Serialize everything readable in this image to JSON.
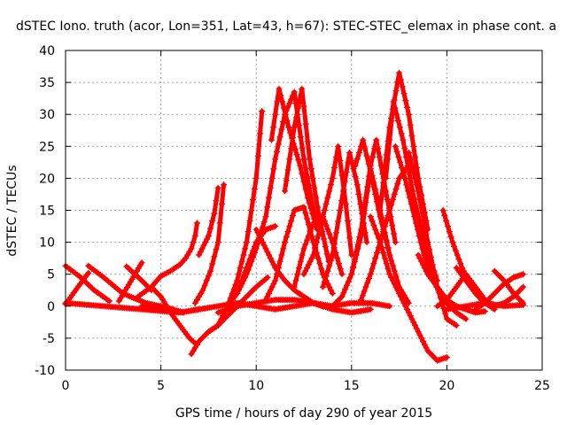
{
  "chart_data": {
    "type": "line",
    "title": "dSTEC Iono. truth (acor, Lon=351, Lat=43, h=67): STEC-STEC_elemax in phase cont. a",
    "xlabel": "GPS time / hours of day 290 of year 2015",
    "ylabel": "dSTEC  / TECUs",
    "xlim": [
      0,
      25
    ],
    "ylim": [
      -10,
      40
    ],
    "xticks": [
      0,
      5,
      10,
      15,
      20,
      25
    ],
    "yticks": [
      -10,
      -5,
      0,
      5,
      10,
      15,
      20,
      25,
      30,
      35,
      40
    ],
    "grid": true,
    "color": "#ff0000",
    "marker": "+",
    "series": [
      {
        "x": [
          0,
          0.8,
          1.5,
          2.3
        ],
        "y": [
          6.3,
          4.5,
          2.5,
          0.8
        ]
      },
      {
        "x": [
          0,
          0.6,
          1.2
        ],
        "y": [
          0.3,
          2.8,
          5.2
        ]
      },
      {
        "x": [
          1.2,
          2.0,
          3.0,
          4.2,
          5.3,
          6.2
        ],
        "y": [
          6.3,
          4.5,
          2.0,
          0.5,
          -0.2,
          -1.0
        ]
      },
      {
        "x": [
          2.8,
          3.4,
          4.0
        ],
        "y": [
          0.8,
          3.8,
          6.8
        ]
      },
      {
        "x": [
          0,
          2.0,
          4.0,
          6.0,
          7.0
        ],
        "y": [
          0.5,
          0.0,
          -0.5,
          -1.0,
          -0.5
        ]
      },
      {
        "x": [
          3.2,
          4.0,
          4.5
        ],
        "y": [
          6.2,
          4.0,
          2.5
        ]
      },
      {
        "x": [
          4.5,
          5.0,
          5.5,
          6.0,
          6.5,
          6.8
        ],
        "y": [
          3.0,
          1.5,
          -1.0,
          -3.0,
          -5.0,
          -5.8
        ]
      },
      {
        "x": [
          3.8,
          4.5,
          5.0,
          5.5,
          6.0,
          6.3,
          6.6,
          6.8,
          6.9
        ],
        "y": [
          1.5,
          3.0,
          4.7,
          5.5,
          6.5,
          7.5,
          9.0,
          11.0,
          13.0
        ]
      },
      {
        "x": [
          6.6,
          7.0,
          7.5,
          8.0,
          8.5,
          9.0,
          9.5,
          10.0,
          10.6
        ],
        "y": [
          -7.5,
          -5.5,
          -4.0,
          -3.0,
          -1.5,
          0.0,
          1.5,
          3.0,
          4.5
        ]
      },
      {
        "x": [
          6.8,
          7.2,
          7.6,
          8.0,
          8.3
        ],
        "y": [
          0.5,
          2.5,
          5.5,
          10.0,
          19.0
        ]
      },
      {
        "x": [
          7.0,
          7.5,
          7.8,
          8.0
        ],
        "y": [
          8.0,
          11.0,
          14.5,
          18.5
        ]
      },
      {
        "x": [
          7.5,
          8.0,
          8.5,
          9.0,
          9.5,
          10.0,
          10.3
        ],
        "y": [
          -4.0,
          -3.0,
          0.0,
          4.0,
          10.0,
          20.0,
          30.5
        ]
      },
      {
        "x": [
          8.5,
          9.0,
          9.5,
          10.0,
          10.5,
          11.0,
          11.5,
          12.0,
          12.5,
          13.2
        ],
        "y": [
          0.0,
          2.0,
          5.0,
          9.0,
          14.0,
          23.0,
          30.0,
          33.5,
          23.0,
          12.0
        ]
      },
      {
        "x": [
          9.0,
          9.5,
          10.0,
          10.5,
          11.0
        ],
        "y": [
          2.0,
          6.0,
          10.0,
          12.0,
          12.5
        ]
      },
      {
        "x": [
          10.0,
          10.5,
          11.0,
          11.5,
          12.0,
          12.5,
          13.0,
          13.5
        ],
        "y": [
          12.0,
          9.0,
          6.0,
          4.0,
          2.5,
          1.5,
          0.5,
          0.0
        ]
      },
      {
        "x": [
          10.5,
          11.0,
          11.5,
          12.0,
          12.5,
          13.0,
          13.5,
          14.0
        ],
        "y": [
          1.0,
          4.0,
          10.0,
          15.0,
          15.5,
          10.0,
          5.0,
          2.0
        ]
      },
      {
        "x": [
          10.8,
          11.2,
          11.7,
          12.3,
          12.7,
          13.2
        ],
        "y": [
          26.0,
          34.0,
          28.0,
          22.0,
          17.0,
          12.0
        ]
      },
      {
        "x": [
          11.5,
          12.0,
          12.4,
          12.8,
          13.3,
          13.8
        ],
        "y": [
          18.0,
          28.0,
          34.0,
          23.0,
          14.0,
          7.0
        ]
      },
      {
        "x": [
          12.0,
          12.5,
          13.0,
          13.5,
          14.0,
          14.5
        ],
        "y": [
          3.0,
          9.0,
          13.0,
          14.0,
          10.0,
          5.0
        ]
      },
      {
        "x": [
          12.5,
          13.0,
          13.5,
          14.0,
          14.3,
          14.7,
          15.0
        ],
        "y": [
          5.0,
          8.0,
          14.0,
          20.0,
          25.0,
          16.0,
          8.0
        ]
      },
      {
        "x": [
          13.5,
          14.0,
          14.4,
          14.9,
          15.3,
          15.8
        ],
        "y": [
          3.0,
          8.0,
          15.0,
          24.0,
          19.0,
          10.0
        ]
      },
      {
        "x": [
          14.0,
          14.5,
          15.0,
          15.5,
          16.0,
          16.5,
          17.0
        ],
        "y": [
          0.0,
          1.5,
          5.0,
          11.0,
          21.5,
          15.0,
          8.0
        ]
      },
      {
        "x": [
          15.2,
          15.6,
          16.0,
          16.5,
          17.0,
          17.5,
          18.0
        ],
        "y": [
          22.0,
          26.0,
          21.0,
          14.0,
          8.0,
          3.0,
          0.5
        ]
      },
      {
        "x": [
          15.0,
          15.5,
          16.0,
          16.3,
          16.8,
          17.3
        ],
        "y": [
          5.0,
          12.0,
          22.0,
          26.0,
          18.0,
          10.0
        ]
      },
      {
        "x": [
          15.5,
          16.0,
          16.5,
          17.0,
          17.5,
          18.0
        ],
        "y": [
          1.0,
          5.0,
          10.0,
          15.0,
          20.0,
          22.0
        ]
      },
      {
        "x": [
          16.0,
          16.5,
          17.0,
          17.5,
          18.0,
          18.5,
          19.0,
          19.5,
          20.0
        ],
        "y": [
          14.0,
          10.0,
          5.0,
          2.0,
          -1.0,
          -4.0,
          -7.0,
          -8.5,
          -8.0
        ]
      },
      {
        "x": [
          16.5,
          17.0,
          17.5,
          18.0,
          18.5,
          19.0
        ],
        "y": [
          15.0,
          28.0,
          36.5,
          30.0,
          20.0,
          12.0
        ]
      },
      {
        "x": [
          16.8,
          17.2,
          17.7,
          18.2,
          18.8,
          19.5
        ],
        "y": [
          20.0,
          32.0,
          26.0,
          18.0,
          10.0,
          4.0
        ]
      },
      {
        "x": [
          17.3,
          17.8,
          18.3,
          18.8,
          19.3,
          19.8,
          20.5,
          21.0
        ],
        "y": [
          25.0,
          20.0,
          14.0,
          8.0,
          4.0,
          1.0,
          -1.0,
          -2.0
        ]
      },
      {
        "x": [
          18.0,
          18.5,
          19.0,
          19.5,
          20.0,
          20.5
        ],
        "y": [
          24.0,
          18.0,
          10.0,
          3.0,
          -2.0,
          -3.0
        ]
      },
      {
        "x": [
          18.5,
          19.0,
          19.5,
          20.0,
          20.5,
          21.0,
          21.5,
          22.0
        ],
        "y": [
          8.0,
          5.0,
          3.0,
          1.0,
          0.0,
          -0.5,
          -1.0,
          -0.8
        ]
      },
      {
        "x": [
          19.8,
          20.3,
          20.8,
          21.3,
          21.8
        ],
        "y": [
          15.0,
          10.0,
          6.0,
          3.0,
          1.0
        ]
      },
      {
        "x": [
          20.5,
          21.0,
          21.5,
          22.0,
          22.5
        ],
        "y": [
          6.0,
          4.0,
          2.0,
          0.5,
          -0.5
        ]
      },
      {
        "x": [
          19.5,
          20.0,
          20.5,
          21.0,
          21.5,
          22.0,
          22.5,
          23.0,
          23.5,
          24.0
        ],
        "y": [
          0.0,
          1.0,
          3.0,
          5.0,
          3.0,
          1.0,
          0.0,
          0.5,
          1.5,
          3.0
        ]
      },
      {
        "x": [
          21.5,
          22.0,
          22.5,
          23.0,
          23.5,
          24.0
        ],
        "y": [
          -0.5,
          0.5,
          2.0,
          3.5,
          4.5,
          5.0
        ]
      },
      {
        "x": [
          22.5,
          23.0,
          23.5,
          24.0
        ],
        "y": [
          5.5,
          4.0,
          2.0,
          0.5
        ]
      },
      {
        "x": [
          20.0,
          21.0,
          22.0,
          23.0,
          24.0
        ],
        "y": [
          -0.5,
          0.0,
          0.5,
          0.0,
          0.2
        ]
      },
      {
        "x": [
          4.0,
          5.0,
          6.0,
          7.0,
          8.0,
          9.0,
          10.0,
          11.0,
          12.0,
          13.0,
          14.0,
          15.0,
          16.0,
          17.0
        ],
        "y": [
          0.0,
          -0.5,
          -1.0,
          -0.5,
          0.0,
          0.5,
          0.0,
          -0.5,
          0.0,
          0.5,
          0.0,
          0.5,
          0.5,
          0.0
        ]
      },
      {
        "x": [
          8.0,
          9.0,
          10.0,
          11.0,
          12.0,
          13.0,
          14.0,
          15.0,
          16.0
        ],
        "y": [
          -1.0,
          0.0,
          0.5,
          1.0,
          1.0,
          0.5,
          -0.5,
          -1.0,
          -0.5
        ]
      }
    ]
  }
}
